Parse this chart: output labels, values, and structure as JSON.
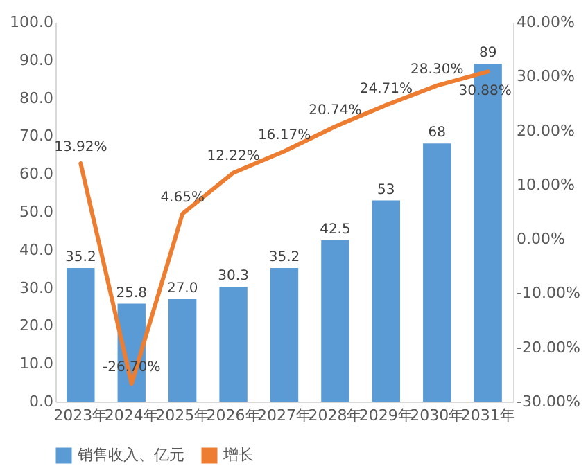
{
  "chart_data": {
    "type": "bar",
    "categories": [
      "2023年",
      "2024年",
      "2025年",
      "2026年",
      "2027年",
      "2028年",
      "2029年",
      "2030年",
      "2031年"
    ],
    "series": [
      {
        "name": "销售收入、亿元",
        "type": "bar",
        "color": "#5b9bd5",
        "values": [
          35.2,
          25.8,
          27.0,
          30.3,
          35.2,
          42.5,
          53,
          68,
          89
        ],
        "value_labels": [
          "35.2",
          "25.8",
          "27.0",
          "30.3",
          "35.2",
          "42.5",
          "53",
          "68",
          "89"
        ]
      },
      {
        "name": "增长",
        "type": "line",
        "axis": "y2",
        "color": "#ed7d31",
        "values": [
          13.92,
          -26.7,
          4.65,
          12.22,
          16.17,
          20.74,
          24.71,
          28.3,
          30.88
        ],
        "value_labels": [
          "13.92%",
          "-26.70%",
          "4.65%",
          "12.22%",
          "16.17%",
          "20.74%",
          "24.71%",
          "28.30%",
          "30.88%"
        ]
      }
    ],
    "ylim": [
      0,
      100
    ],
    "yticks": [
      {
        "value": 0,
        "label": "0.0"
      },
      {
        "value": 10,
        "label": "10.0"
      },
      {
        "value": 20,
        "label": "20.0"
      },
      {
        "value": 30,
        "label": "30.0"
      },
      {
        "value": 40,
        "label": "40.0"
      },
      {
        "value": 50,
        "label": "50.0"
      },
      {
        "value": 60,
        "label": "60.0"
      },
      {
        "value": 70,
        "label": "70.0"
      },
      {
        "value": 80,
        "label": "80.0"
      },
      {
        "value": 90,
        "label": "90.0"
      },
      {
        "value": 100,
        "label": "100.0"
      }
    ],
    "y2lim": [
      -30,
      40
    ],
    "y2ticks": [
      {
        "value": -30,
        "label": "-30.00%"
      },
      {
        "value": -20,
        "label": "-20.00%"
      },
      {
        "value": -10,
        "label": "-10.00%"
      },
      {
        "value": 0,
        "label": "0.00%"
      },
      {
        "value": 10,
        "label": "10.00%"
      },
      {
        "value": 20,
        "label": "20.00%"
      },
      {
        "value": 30,
        "label": "30.00%"
      },
      {
        "value": 40,
        "label": "40.00%"
      }
    ],
    "grid": false,
    "legend": "bottom",
    "marker": "none",
    "line_style": "solid"
  }
}
